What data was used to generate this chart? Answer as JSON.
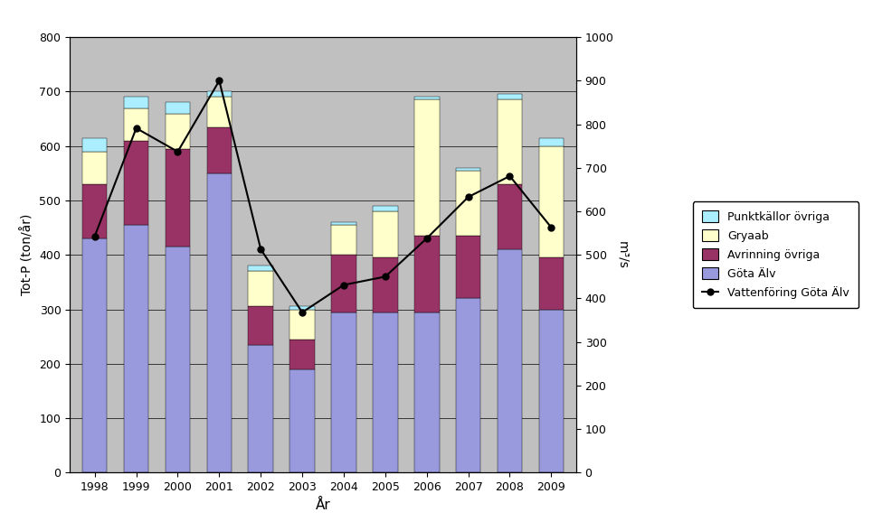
{
  "years": [
    1998,
    1999,
    2000,
    2001,
    2002,
    2003,
    2004,
    2005,
    2006,
    2007,
    2008,
    2009
  ],
  "gota_alv": [
    430,
    455,
    415,
    550,
    235,
    190,
    295,
    295,
    295,
    320,
    410,
    300
  ],
  "avrinning_ovriga": [
    100,
    155,
    180,
    85,
    70,
    55,
    105,
    100,
    140,
    115,
    120,
    95
  ],
  "gryaab": [
    60,
    60,
    65,
    55,
    65,
    55,
    55,
    85,
    250,
    120,
    155,
    205
  ],
  "punktkallor": [
    25,
    20,
    20,
    10,
    10,
    5,
    5,
    10,
    5,
    5,
    10,
    15
  ],
  "vattenf": [
    543,
    791,
    737,
    900,
    513,
    368,
    431,
    450,
    538,
    633,
    681,
    563
  ],
  "bar_colors": {
    "gota_alv": "#9999dd",
    "avrinning_ovriga": "#993366",
    "gryaab": "#ffffcc",
    "punktkallor": "#aaeeff"
  },
  "line_color": "#000000",
  "ylim_left": [
    0,
    800
  ],
  "ylim_right": [
    0,
    1000
  ],
  "ylabel_left": "Tot-P (ton/år)",
  "ylabel_right": "m³/s",
  "xlabel": "År",
  "plot_bg_color": "#c0c0c0",
  "fig_bg_color": "#ffffff",
  "legend_labels": [
    "Punktkällor övriga",
    "Gryaab",
    "Avrinning övriga",
    "Göta Älv",
    "Vattenföring Göta Älv"
  ],
  "yticks_left": [
    0,
    100,
    200,
    300,
    400,
    500,
    600,
    700,
    800
  ],
  "yticks_right": [
    0,
    100,
    200,
    300,
    400,
    500,
    600,
    700,
    800,
    900,
    1000
  ],
  "figsize": [
    9.65,
    5.88
  ],
  "dpi": 100
}
